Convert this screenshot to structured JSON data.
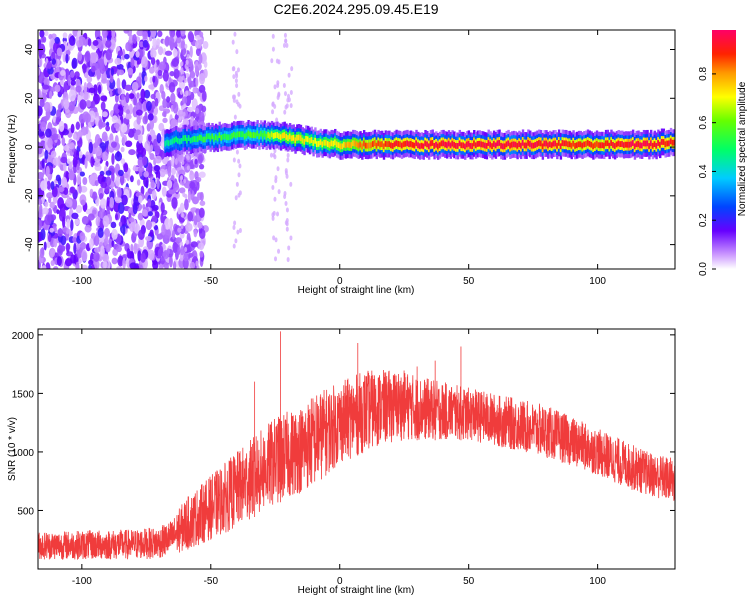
{
  "figure": {
    "title": "C2E6.2024.295.09.45.E19"
  },
  "chart_data": [
    {
      "type": "heatmap",
      "xlabel": "Height of straight line (km)",
      "ylabel": "Frequency (Hz)",
      "xlim": [
        -117,
        130
      ],
      "ylim": [
        -50,
        48
      ],
      "xticks": [
        -100,
        -50,
        0,
        50,
        100
      ],
      "yticks": [
        -40,
        -20,
        0,
        20,
        40
      ],
      "colorbar": {
        "label": "Normalized spectral amplitude",
        "range": [
          0,
          0.98
        ],
        "ticks": [
          0,
          0.2,
          0.4,
          0.6,
          0.8
        ],
        "tick_labels": [
          "0.0",
          "0.2",
          "0.4",
          "0.6",
          "0.8"
        ]
      },
      "ridge": {
        "x": [
          -68,
          -60,
          -50,
          -40,
          -30,
          -25,
          -20,
          -10,
          0,
          10,
          20,
          30,
          40,
          60,
          80,
          90,
          100,
          110,
          120,
          130
        ],
        "freq_hz": [
          2,
          3,
          4,
          5,
          5,
          5,
          4,
          2,
          1,
          1,
          1,
          1,
          1,
          1,
          1,
          1,
          1,
          1,
          1,
          2
        ],
        "amplitude": [
          0.45,
          0.5,
          0.55,
          0.55,
          0.6,
          0.7,
          0.75,
          0.7,
          0.75,
          0.85,
          0.9,
          0.95,
          0.95,
          0.95,
          0.95,
          0.9,
          0.9,
          0.95,
          0.95,
          0.9
        ]
      }
    },
    {
      "type": "line",
      "xlabel": "Height of straight line (km)",
      "ylabel": "SNR (10 * v/v)",
      "xlim": [
        -117,
        130
      ],
      "ylim": [
        0,
        2050
      ],
      "xticks": [
        -100,
        -50,
        0,
        50,
        100
      ],
      "yticks": [
        500,
        1000,
        1500,
        2000
      ],
      "line_color": "#f03c3c",
      "envelope": {
        "x": [
          -117,
          -100,
          -80,
          -70,
          -65,
          -60,
          -55,
          -50,
          -45,
          -40,
          -35,
          -30,
          -25,
          -20,
          -15,
          -10,
          -5,
          0,
          5,
          10,
          15,
          20,
          25,
          30,
          40,
          50,
          60,
          70,
          80,
          90,
          100,
          110,
          120,
          130
        ],
        "low": [
          80,
          80,
          80,
          90,
          120,
          150,
          200,
          250,
          300,
          350,
          420,
          480,
          550,
          600,
          650,
          700,
          800,
          900,
          950,
          1000,
          1050,
          1080,
          1100,
          1100,
          1100,
          1100,
          1050,
          1000,
          950,
          880,
          800,
          700,
          620,
          560
        ],
        "high": [
          320,
          330,
          340,
          360,
          420,
          600,
          700,
          800,
          900,
          1000,
          1100,
          1200,
          1300,
          1350,
          1400,
          1500,
          1550,
          1600,
          1650,
          1700,
          1700,
          1700,
          1700,
          1650,
          1600,
          1550,
          1500,
          1450,
          1400,
          1300,
          1200,
          1100,
          1000,
          950
        ]
      },
      "spikes": [
        {
          "x": -23,
          "y": 2030
        },
        {
          "x": -33,
          "y": 1600
        },
        {
          "x": 7,
          "y": 1930
        },
        {
          "x": 30,
          "y": 1730
        },
        {
          "x": 37,
          "y": 1780
        },
        {
          "x": 47,
          "y": 1900
        }
      ]
    }
  ]
}
